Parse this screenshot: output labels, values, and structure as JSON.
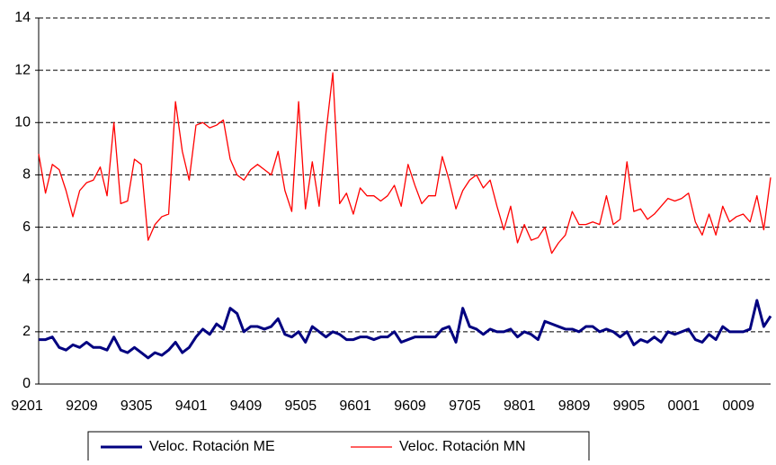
{
  "chart_data": {
    "type": "line",
    "categories": [
      "9201",
      null,
      null,
      null,
      null,
      null,
      null,
      null,
      "9209",
      null,
      null,
      null,
      null,
      null,
      null,
      null,
      "9305",
      null,
      null,
      null,
      null,
      null,
      null,
      null,
      "9401",
      null,
      null,
      null,
      null,
      null,
      null,
      null,
      "9409",
      null,
      null,
      null,
      null,
      null,
      null,
      null,
      "9505",
      null,
      null,
      null,
      null,
      null,
      null,
      null,
      "9601",
      null,
      null,
      null,
      null,
      null,
      null,
      null,
      "9609",
      null,
      null,
      null,
      null,
      null,
      null,
      null,
      "9705",
      null,
      null,
      null,
      null,
      null,
      null,
      null,
      "9801",
      null,
      null,
      null,
      null,
      null,
      null,
      null,
      "9809",
      null,
      null,
      null,
      null,
      null,
      null,
      null,
      "9905",
      null,
      null,
      null,
      null,
      null,
      null,
      null,
      "0001",
      null,
      null,
      null,
      null,
      null,
      null,
      null,
      "0009",
      null,
      null,
      null
    ],
    "series": [
      {
        "name": "Veloc. Rotación ME",
        "color": "#000080",
        "width": 3,
        "values": [
          1.7,
          1.7,
          1.8,
          1.4,
          1.3,
          1.5,
          1.4,
          1.6,
          1.4,
          1.4,
          1.3,
          1.8,
          1.3,
          1.2,
          1.4,
          1.2,
          1.0,
          1.2,
          1.1,
          1.3,
          1.6,
          1.2,
          1.4,
          1.8,
          2.1,
          1.9,
          2.3,
          2.1,
          2.9,
          2.7,
          2.0,
          2.2,
          2.2,
          2.1,
          2.2,
          2.5,
          1.9,
          1.8,
          2.0,
          1.6,
          2.2,
          2.0,
          1.8,
          2.0,
          1.9,
          1.7,
          1.7,
          1.8,
          1.8,
          1.7,
          1.8,
          1.8,
          2.0,
          1.6,
          1.7,
          1.8,
          1.8,
          1.8,
          1.8,
          2.1,
          2.2,
          1.6,
          2.9,
          2.2,
          2.1,
          1.9,
          2.1,
          2.0,
          2.0,
          2.1,
          1.8,
          2.0,
          1.9,
          1.7,
          2.4,
          2.3,
          2.2,
          2.1,
          2.1,
          2.0,
          2.2,
          2.2,
          2.0,
          2.1,
          2.0,
          1.8,
          2.0,
          1.5,
          1.7,
          1.6,
          1.8,
          1.6,
          2.0,
          1.9,
          2.0,
          2.1,
          1.7,
          1.6,
          1.9,
          1.7,
          2.2,
          2.0,
          2.0,
          2.0,
          2.1,
          3.2,
          2.2,
          2.6
        ]
      },
      {
        "name": "Veloc. Rotación MN",
        "color": "#ff0000",
        "width": 1.3,
        "values": [
          8.8,
          7.3,
          8.4,
          8.2,
          7.4,
          6.4,
          7.4,
          7.7,
          7.8,
          8.3,
          7.2,
          10.0,
          6.9,
          7.0,
          8.6,
          8.4,
          5.5,
          6.1,
          6.4,
          6.5,
          10.8,
          8.9,
          7.8,
          9.9,
          10.0,
          9.8,
          9.9,
          10.1,
          8.6,
          8.0,
          7.8,
          8.2,
          8.4,
          8.2,
          8.0,
          8.9,
          7.4,
          6.6,
          10.8,
          6.7,
          8.5,
          6.8,
          9.6,
          11.9,
          6.9,
          7.3,
          6.5,
          7.5,
          7.2,
          7.2,
          7.0,
          7.2,
          7.6,
          6.8,
          8.4,
          7.6,
          6.9,
          7.2,
          7.2,
          8.7,
          7.8,
          6.7,
          7.4,
          7.8,
          8.0,
          7.5,
          7.8,
          6.8,
          5.9,
          6.8,
          5.4,
          6.1,
          5.5,
          5.6,
          6.0,
          5.0,
          5.4,
          5.7,
          6.6,
          6.1,
          6.1,
          6.2,
          6.1,
          7.2,
          6.1,
          6.3,
          8.5,
          6.6,
          6.7,
          6.3,
          6.5,
          6.8,
          7.1,
          7.0,
          7.1,
          7.3,
          6.2,
          5.7,
          6.5,
          5.7,
          6.8,
          6.2,
          6.4,
          6.5,
          6.2,
          7.2,
          5.9,
          7.9
        ]
      }
    ],
    "ylim": [
      0,
      14
    ],
    "yticks": [
      0,
      2,
      4,
      6,
      8,
      10,
      12,
      14
    ],
    "grid": true,
    "legend": "bottom"
  }
}
